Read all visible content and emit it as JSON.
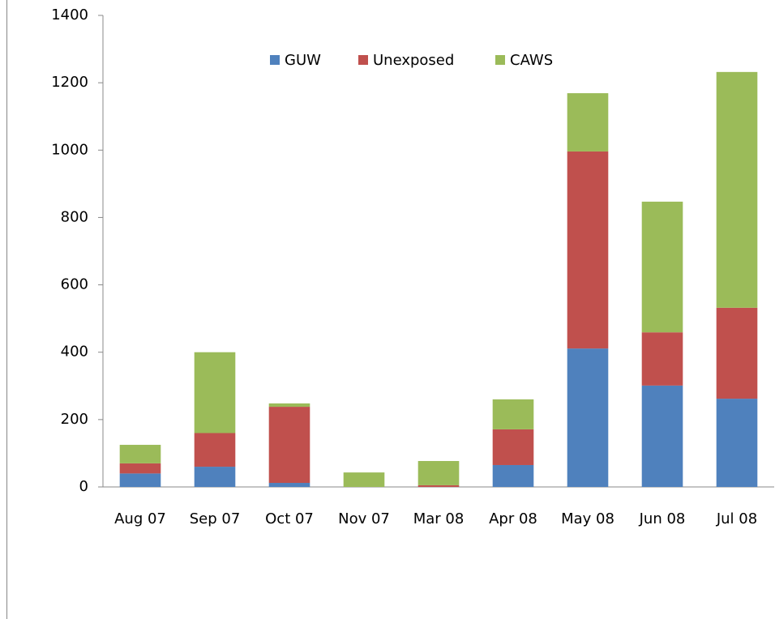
{
  "chart_data": {
    "type": "bar",
    "stacked": true,
    "categories": [
      "Aug 07",
      "Sep 07",
      "Oct 07",
      "Nov 07",
      "Mar 08",
      "Apr 08",
      "May 08",
      "Jun 08",
      "Jul 08"
    ],
    "series": [
      {
        "name": "GUW",
        "color": "#4f81bd",
        "values": [
          40,
          60,
          12,
          0,
          0,
          65,
          411,
          301,
          262
        ]
      },
      {
        "name": "Unexposed",
        "color": "#c0504d",
        "values": [
          30,
          100,
          226,
          0,
          5,
          106,
          585,
          158,
          270
        ]
      },
      {
        "name": "CAWS",
        "color": "#9bbb59",
        "values": [
          55,
          240,
          10,
          43,
          72,
          89,
          173,
          388,
          700
        ]
      }
    ],
    "ylim": [
      0,
      1400
    ],
    "yticks": [
      0,
      200,
      400,
      600,
      800,
      1000,
      1200,
      1400
    ],
    "legend": "top"
  }
}
